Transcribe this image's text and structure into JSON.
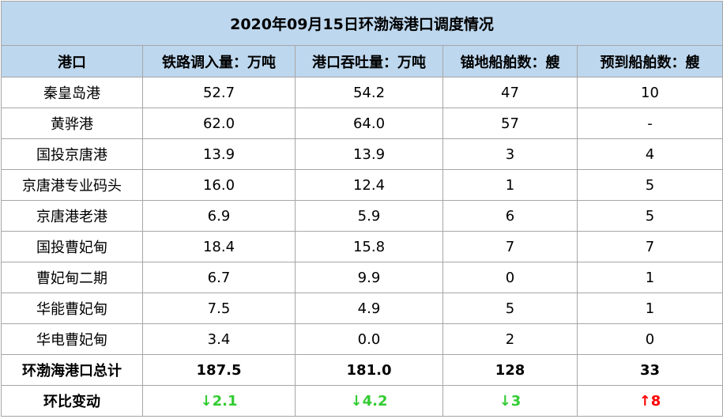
{
  "title": "2020年09月15日环渤海港口调度情况",
  "table": {
    "header": [
      "港口",
      "铁路调入量：万吨",
      "港口吞吐量：万吨",
      "锚地船舶数：艘",
      "预到船舶数：艘"
    ],
    "rows": [
      [
        "秦皇岛港",
        "52.7",
        "54.2",
        "47",
        "10"
      ],
      [
        "黄骅港",
        "62.0",
        "64.0",
        "57",
        "-"
      ],
      [
        "国投京唐港",
        "13.9",
        "13.9",
        "3",
        "4"
      ],
      [
        "京唐港专业码头",
        "16.0",
        "12.4",
        "1",
        "5"
      ],
      [
        "京唐港老港",
        "6.9",
        "5.9",
        "6",
        "5"
      ],
      [
        "国投曹妃甸",
        "18.4",
        "15.8",
        "7",
        "7"
      ],
      [
        "曹妃甸二期",
        "6.7",
        "9.9",
        "0",
        "1"
      ],
      [
        "华能曹妃甸",
        "7.5",
        "4.9",
        "5",
        "1"
      ],
      [
        "华电曹妃甸",
        "3.4",
        "0.0",
        "2",
        "0"
      ],
      [
        "环渤海港口总计",
        "187.5",
        "181.0",
        "128",
        "33"
      ],
      [
        "环比变动",
        "↓2.1",
        "↓4.2",
        "↓3",
        "↑8"
      ]
    ]
  }
}
